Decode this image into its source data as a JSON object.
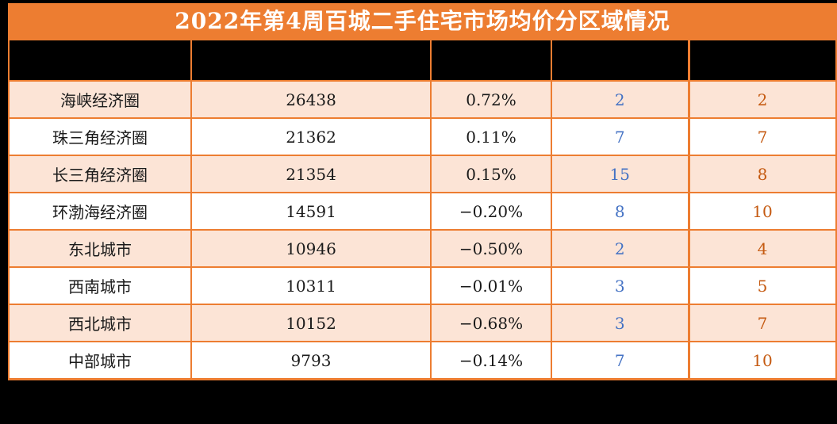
{
  "title": "2022年第4周百城二手住宅市场均价分区域情况",
  "colors": {
    "accent_orange": "#ED7D31",
    "row_peach": "#FCE4D6",
    "header_bg": "#000000",
    "blue_number": "#4472C4",
    "orange_number": "#C55A11"
  },
  "table": {
    "headers": [
      "",
      "",
      "",
      "",
      ""
    ],
    "rows": [
      {
        "region": "海峡经济圈",
        "price": "26438",
        "change": "0.72%",
        "col4": "2",
        "col5": "2"
      },
      {
        "region": "珠三角经济圈",
        "price": "21362",
        "change": "0.11%",
        "col4": "7",
        "col5": "7"
      },
      {
        "region": "长三角经济圈",
        "price": "21354",
        "change": "0.15%",
        "col4": "15",
        "col5": "8"
      },
      {
        "region": "环渤海经济圈",
        "price": "14591",
        "change": "−0.20%",
        "col4": "8",
        "col5": "10"
      },
      {
        "region": "东北城市",
        "price": "10946",
        "change": "−0.50%",
        "col4": "2",
        "col5": "4"
      },
      {
        "region": "西南城市",
        "price": "10311",
        "change": "−0.01%",
        "col4": "3",
        "col5": "5"
      },
      {
        "region": "西北城市",
        "price": "10152",
        "change": "−0.68%",
        "col4": "3",
        "col5": "7"
      },
      {
        "region": "中部城市",
        "price": "9793",
        "change": "−0.14%",
        "col4": "7",
        "col5": "10"
      }
    ]
  },
  "chart_data": {
    "type": "table",
    "title": "2022年第4周百城二手住宅市场均价分区域情况",
    "columns": [
      "",
      "",
      "",
      "",
      ""
    ],
    "rows": [
      [
        "海峡经济圈",
        26438,
        "0.72%",
        2,
        2
      ],
      [
        "珠三角经济圈",
        21362,
        "0.11%",
        7,
        7
      ],
      [
        "长三角经济圈",
        21354,
        "0.15%",
        15,
        8
      ],
      [
        "环渤海经济圈",
        14591,
        "-0.20%",
        8,
        10
      ],
      [
        "东北城市",
        10946,
        "-0.50%",
        2,
        4
      ],
      [
        "西南城市",
        10311,
        "-0.01%",
        3,
        5
      ],
      [
        "西北城市",
        10152,
        "-0.68%",
        3,
        7
      ],
      [
        "中部城市",
        9793,
        "-0.14%",
        7,
        10
      ]
    ]
  }
}
